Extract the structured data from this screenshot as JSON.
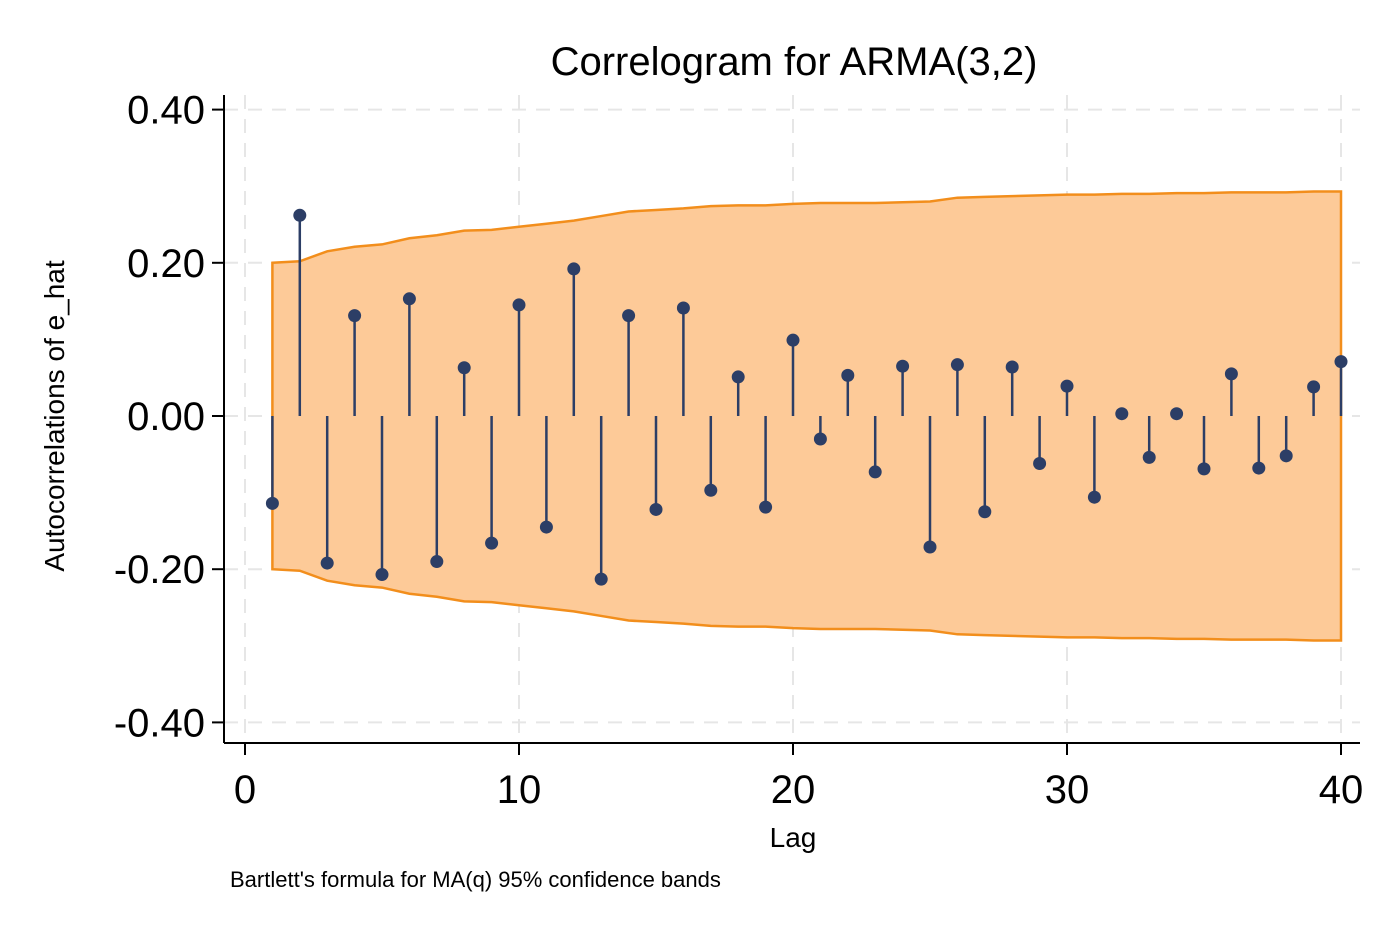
{
  "chart_data": {
    "type": "line",
    "title": "Correlogram for ARMA(3,2)",
    "xlabel": "Lag",
    "ylabel": "Autocorrelations of e_hat",
    "note": "Bartlett's formula for MA(q) 95% confidence bands",
    "xlim": [
      0,
      40
    ],
    "ylim": [
      -0.4,
      0.4
    ],
    "x_ticks": [
      0,
      10,
      20,
      30,
      40
    ],
    "x_tick_labels": [
      "0",
      "10",
      "20",
      "30",
      "40"
    ],
    "y_ticks": [
      0.4,
      0.2,
      0.0,
      -0.2,
      -0.4
    ],
    "y_tick_labels": [
      "0.40",
      "0.20",
      "0.00",
      "-0.20",
      "-0.40"
    ],
    "grid": true,
    "colors": {
      "band_fill": "#FDCA98",
      "band_edge": "#F28E1C",
      "spike": "#2C3E66",
      "grid": "#E6E6E6"
    },
    "series": [
      {
        "lags": [
          1,
          2,
          3,
          4,
          5,
          6,
          7,
          8,
          9,
          10,
          11,
          12,
          13,
          14,
          15,
          16,
          17,
          18,
          19,
          20,
          21,
          22,
          23,
          24,
          25,
          26,
          27,
          28,
          29,
          30,
          31,
          32,
          33,
          34,
          35,
          36,
          37,
          38,
          39,
          40
        ],
        "values": [
          -0.114,
          0.262,
          -0.192,
          0.131,
          -0.207,
          0.153,
          -0.19,
          0.063,
          -0.166,
          0.145,
          -0.145,
          0.192,
          -0.213,
          0.131,
          -0.122,
          0.141,
          -0.097,
          0.051,
          -0.119,
          0.099,
          -0.03,
          0.053,
          -0.073,
          0.065,
          -0.171,
          0.067,
          -0.125,
          0.064,
          -0.062,
          0.039,
          -0.106,
          0.003,
          -0.054,
          0.003,
          -0.069,
          0.055,
          -0.068,
          -0.052,
          0.038,
          0.071
        ]
      }
    ],
    "confidence_band": {
      "label": "Bartlett's formula for MA(q) 95% confidence bands",
      "upper": [
        0.2,
        0.202,
        0.215,
        0.221,
        0.224,
        0.232,
        0.236,
        0.242,
        0.243,
        0.247,
        0.251,
        0.255,
        0.261,
        0.267,
        0.269,
        0.271,
        0.274,
        0.275,
        0.275,
        0.277,
        0.278,
        0.278,
        0.278,
        0.279,
        0.28,
        0.285,
        0.286,
        0.287,
        0.288,
        0.289,
        0.289,
        0.29,
        0.29,
        0.291,
        0.291,
        0.292,
        0.292,
        0.292,
        0.293,
        0.293
      ]
    }
  }
}
